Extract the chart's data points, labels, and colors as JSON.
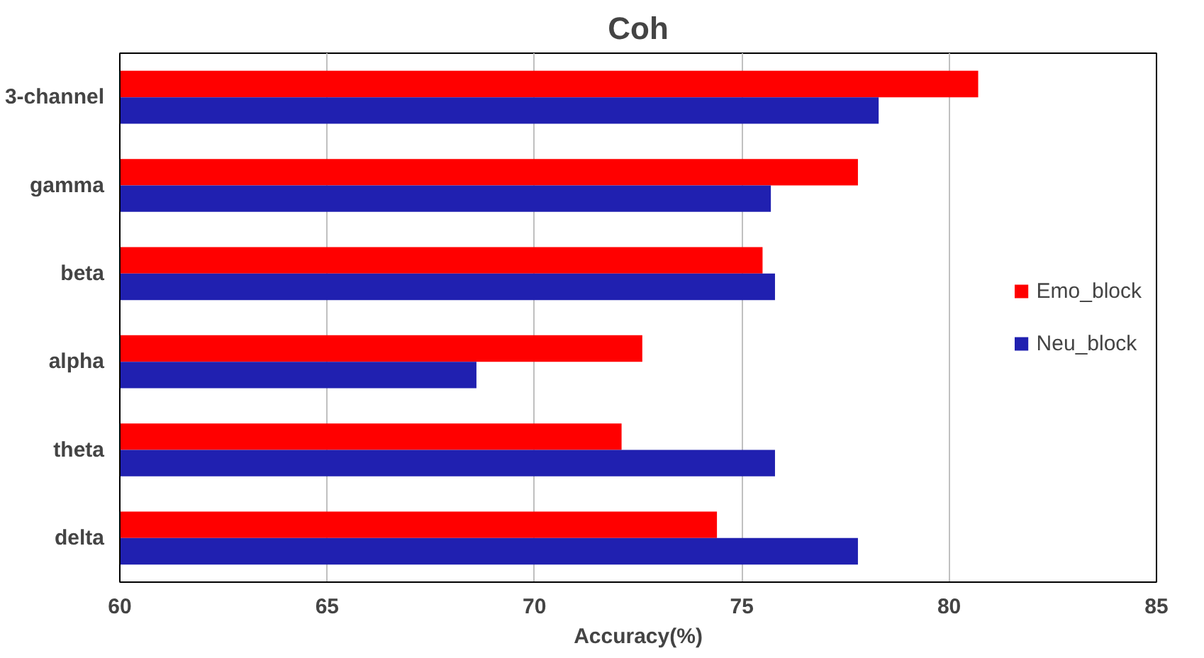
{
  "chart_data": {
    "type": "bar",
    "orientation": "horizontal",
    "title": "Coh",
    "xlabel": "Accuracy(%)",
    "categories": [
      "3-channel",
      "gamma",
      "beta",
      "alpha",
      "theta",
      "delta"
    ],
    "series": [
      {
        "name": "Emo_block",
        "color": "#ff0000",
        "values": [
          80.7,
          77.8,
          75.5,
          72.6,
          72.1,
          74.4
        ]
      },
      {
        "name": "Neu_block",
        "color": "#2020b0",
        "values": [
          78.3,
          75.7,
          75.8,
          68.6,
          75.8,
          77.8
        ]
      }
    ],
    "xlim": [
      60,
      85
    ],
    "xticks": [
      60,
      65,
      70,
      75,
      80,
      85
    ],
    "grid": "x",
    "legend": "right"
  }
}
